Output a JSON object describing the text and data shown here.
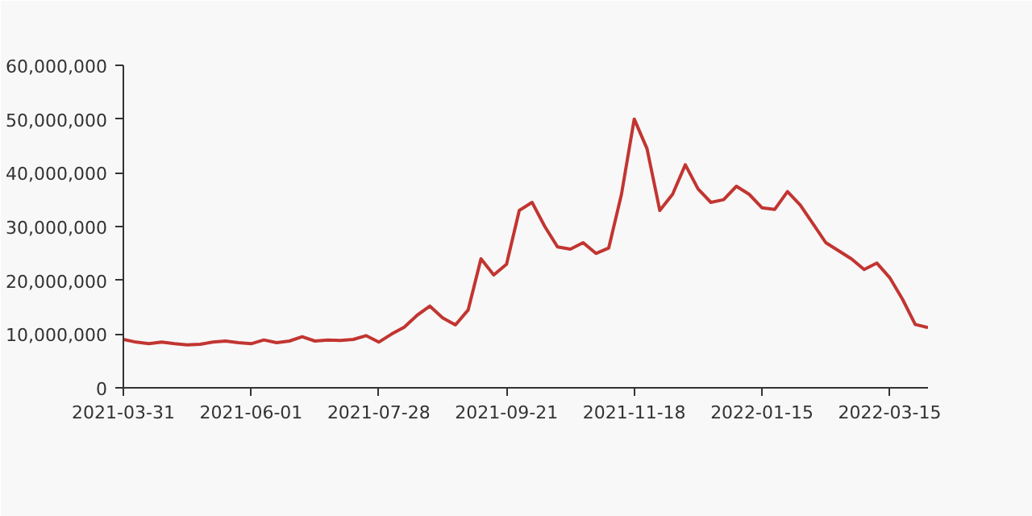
{
  "chart_data": {
    "type": "line",
    "color": "#c23531",
    "categories": [
      "2021-03-31",
      null,
      null,
      null,
      null,
      null,
      null,
      null,
      null,
      null,
      "2021-06-01",
      null,
      null,
      null,
      null,
      null,
      null,
      null,
      null,
      null,
      "2021-07-28",
      null,
      null,
      null,
      null,
      null,
      null,
      null,
      null,
      null,
      "2021-09-21",
      null,
      null,
      null,
      null,
      null,
      null,
      null,
      null,
      null,
      "2021-11-18",
      null,
      null,
      null,
      null,
      null,
      null,
      null,
      null,
      null,
      "2022-01-15",
      null,
      null,
      null,
      null,
      null,
      null,
      null,
      null,
      null,
      "2022-03-15",
      null,
      null,
      null
    ],
    "values": [
      9000000,
      8500000,
      8200000,
      8500000,
      8200000,
      8000000,
      8100000,
      8500000,
      8700000,
      8400000,
      8200000,
      8900000,
      8400000,
      8700000,
      9500000,
      8700000,
      8900000,
      8800000,
      9000000,
      9700000,
      8500000,
      10000000,
      11300000,
      13500000,
      15200000,
      13000000,
      11700000,
      14500000,
      24000000,
      21000000,
      23000000,
      33000000,
      34500000,
      30000000,
      26200000,
      25800000,
      27000000,
      25000000,
      26000000,
      36000000,
      50000000,
      44500000,
      33000000,
      36000000,
      41500000,
      37000000,
      34500000,
      35000000,
      37500000,
      36000000,
      33500000,
      33200000,
      36500000,
      34000000,
      30500000,
      27000000,
      25500000,
      24000000,
      22000000,
      23200000,
      20500000,
      16500000,
      11800000,
      11200000
    ],
    "ylim": [
      0,
      60000000
    ],
    "yticks": [
      0,
      {
        "value": 10000000,
        "label": "10,000,000"
      },
      {
        "value": 20000000,
        "label": "20,000,000"
      },
      {
        "value": 30000000,
        "label": "30,000,000"
      },
      {
        "value": 40000000,
        "label": "40,000,000"
      },
      {
        "value": 50000000,
        "label": "50,000,000"
      },
      {
        "value": 60000000,
        "label": "60,000,000"
      }
    ],
    "grid": false,
    "line_style": "solid"
  }
}
